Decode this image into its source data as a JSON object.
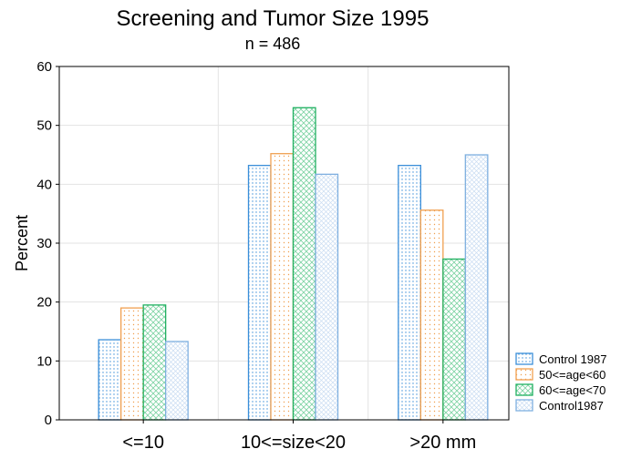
{
  "chart_data": {
    "type": "bar",
    "title": "Screening and Tumor Size 1995",
    "subtitle": "n = 486",
    "ylabel": "Percent",
    "xlabel": "",
    "ylim": [
      0,
      60
    ],
    "yticks": [
      0,
      10,
      20,
      30,
      40,
      50,
      60
    ],
    "grid": true,
    "legend_position": "bottom-right",
    "categories": [
      "<=10",
      "10<=size<20",
      ">20 mm"
    ],
    "series": [
      {
        "name": "Control 1987",
        "values": [
          13.6,
          43.2,
          43.2
        ],
        "color": "#3b8fd9",
        "pattern": "dots"
      },
      {
        "name": "50<=age<60",
        "values": [
          19.0,
          45.2,
          35.6
        ],
        "color": "#f0a050",
        "pattern": "dots-sparse"
      },
      {
        "name": "60<=age<70",
        "values": [
          19.5,
          53.0,
          27.3
        ],
        "color": "#1fb060",
        "pattern": "crosshatch"
      },
      {
        "name": "Control1987",
        "values": [
          13.3,
          41.7,
          45.0
        ],
        "color": "#7fb0e0",
        "pattern": "fine-crosshatch"
      }
    ]
  }
}
